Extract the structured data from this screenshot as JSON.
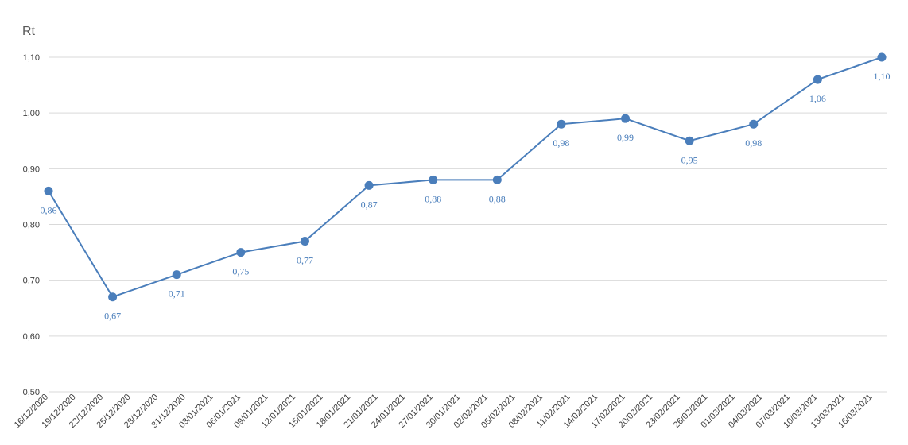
{
  "chart_data": {
    "type": "line",
    "title": "Rt",
    "x": [
      "16/12/2020",
      "23/12/2020",
      "30/12/2020",
      "06/01/2021",
      "13/01/2021",
      "20/01/2021",
      "27/01/2021",
      "03/02/2021",
      "10/02/2021",
      "17/02/2021",
      "24/02/2021",
      "03/03/2021",
      "10/03/2021",
      "17/03/2021"
    ],
    "series": [
      {
        "name": "Rt",
        "color": "#4a7ebb",
        "values": [
          0.86,
          0.67,
          0.71,
          0.75,
          0.77,
          0.87,
          0.88,
          0.88,
          0.98,
          0.99,
          0.95,
          0.98,
          1.06,
          1.1
        ],
        "value_labels": [
          "0,86",
          "0,67",
          "0,71",
          "0,75",
          "0,77",
          "0,87",
          "0,88",
          "0,88",
          "0,98",
          "0,99",
          "0,95",
          "0,98",
          "1,06",
          "1,10"
        ]
      }
    ],
    "xlim": [
      "16/12/2020",
      "17/03/2021"
    ],
    "xticks": [
      "16/12/2020",
      "19/12/2020",
      "22/12/2020",
      "25/12/2020",
      "28/12/2020",
      "31/12/2020",
      "03/01/2021",
      "06/01/2021",
      "09/01/2021",
      "12/01/2021",
      "15/01/2021",
      "18/01/2021",
      "21/01/2021",
      "24/01/2021",
      "27/01/2021",
      "30/01/2021",
      "02/02/2021",
      "05/02/2021",
      "08/02/2021",
      "11/02/2021",
      "14/02/2021",
      "17/02/2021",
      "20/02/2021",
      "23/02/2021",
      "26/02/2021",
      "01/03/2021",
      "04/03/2021",
      "07/03/2021",
      "10/03/2021",
      "13/03/2021",
      "16/03/2021"
    ],
    "ylim": [
      0.5,
      1.1
    ],
    "yticks": [
      {
        "value": 0.5,
        "label": "0,50"
      },
      {
        "value": 0.6,
        "label": "0,60"
      },
      {
        "value": 0.7,
        "label": "0,70"
      },
      {
        "value": 0.8,
        "label": "0,80"
      },
      {
        "value": 0.9,
        "label": "0,90"
      },
      {
        "value": 1.0,
        "label": "1,00"
      },
      {
        "value": 1.1,
        "label": "1,10"
      }
    ],
    "grid": true
  }
}
